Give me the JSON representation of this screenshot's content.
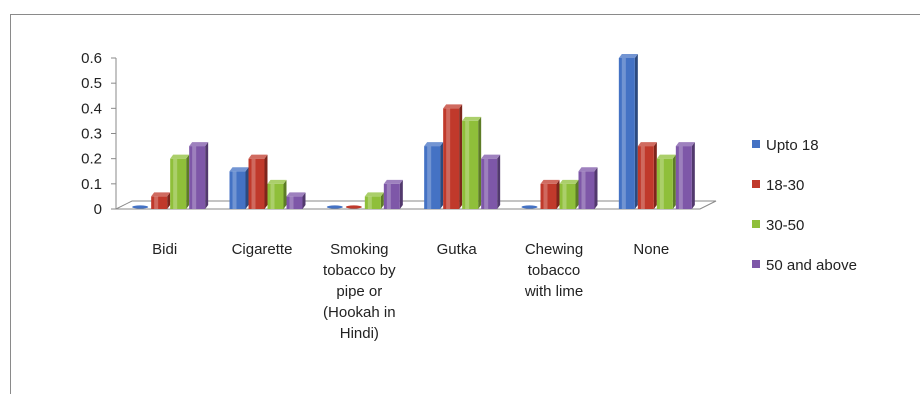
{
  "chart_data": {
    "type": "bar",
    "title": "",
    "xlabel": "",
    "ylabel": "",
    "ylim": [
      0,
      0.6
    ],
    "yticks": [
      "0",
      "0.1",
      "0.2",
      "0.3",
      "0.4",
      "0.5",
      "0.6"
    ],
    "categories": [
      [
        "Bidi"
      ],
      [
        "Cigarette"
      ],
      [
        "Smoking",
        "tobacco by",
        "pipe or",
        "(Hookah in",
        "Hindi)"
      ],
      [
        "Gutka"
      ],
      [
        "Chewing",
        "tobacco",
        "with lime"
      ],
      [
        "None"
      ]
    ],
    "series": [
      {
        "name": "Upto 18",
        "color": "#4472c4",
        "values": [
          0.0,
          0.15,
          0.0,
          0.25,
          0.0,
          0.6
        ]
      },
      {
        "name": "18-30",
        "color": "#c0392b",
        "values": [
          0.05,
          0.2,
          0.0,
          0.4,
          0.1,
          0.25
        ]
      },
      {
        "name": "30-50",
        "color": "#8fbf3a",
        "values": [
          0.2,
          0.1,
          0.05,
          0.35,
          0.1,
          0.2
        ]
      },
      {
        "name": "50 and above",
        "color": "#7e57a8",
        "values": [
          0.25,
          0.05,
          0.1,
          0.2,
          0.15,
          0.25
        ]
      }
    ],
    "legend_position": "right",
    "grid": false
  }
}
